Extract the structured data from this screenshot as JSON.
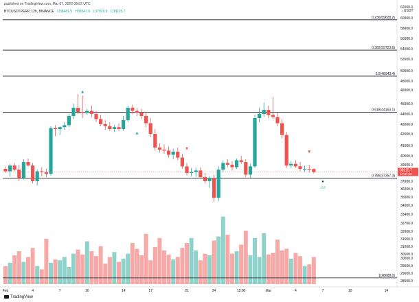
{
  "header": {
    "published": "published on TradingView.com, Mar 07, 2022 09:52 UTC",
    "symbol": "BTCUSDTPERP, 12h, BINANCE",
    "open": "O38481.9",
    "high": "H38547.6",
    "low": "L37929.9",
    "close": "C38125.7"
  },
  "currency_label": "↓ USDT",
  "footer": {
    "brand": "TradingView"
  },
  "chart_data": {
    "type": "candlestick",
    "y_axis": {
      "ylim": [
        28000,
        63000
      ],
      "tick_labels": [
        "28500.0",
        "29000.0",
        "29500.0",
        "30000.0",
        "30500.0",
        "31000.0",
        "31500.0",
        "32000.0",
        "32700.0",
        "33400.0",
        "34000.0",
        "35000.0",
        "36000.0",
        "37000.0",
        "38000.0",
        "39000.0",
        "40000.0",
        "41000.0",
        "42000.0",
        "43000.0",
        "44000.0",
        "45000.0",
        "46000.0",
        "48000.0",
        "50000.0",
        "52000.0",
        "54000.0",
        "56000.0",
        "58000.0",
        "60000.0",
        "62000.0"
      ],
      "tick_values": [
        28500,
        29000,
        29500,
        30000,
        30500,
        31000,
        31500,
        32000,
        32700,
        33400,
        34000,
        35000,
        36000,
        37000,
        38000,
        39000,
        40000,
        41000,
        42000,
        43000,
        44000,
        45000,
        46000,
        48000,
        50000,
        52000,
        54000,
        56000,
        58000,
        60000,
        62000
      ]
    },
    "x_axis": {
      "tick_labels": [
        "Feb",
        "4",
        "7",
        "10",
        "14",
        "17",
        "21",
        "24",
        "12:00",
        "Mar",
        "4",
        "7",
        "10",
        "14"
      ],
      "tick_index": [
        0,
        6,
        12,
        18,
        26,
        32,
        40,
        46,
        52,
        58,
        64,
        70,
        76,
        84
      ]
    },
    "fib_levels": [
      {
        "label": "0.236(59628.2)",
        "value": 59628.2
      },
      {
        "label": "0.382(53723.6)",
        "value": 53723.6
      },
      {
        "label": "0.5(48943.4)",
        "value": 48943.4
      },
      {
        "label": "0.618(44163.1)",
        "value": 44163.1
      },
      {
        "label": "0.786(37357.3)",
        "value": 37357.3
      },
      {
        "label": "1(28688.0)",
        "value": 28688.0
      }
    ],
    "price_label": {
      "value": 38125.7,
      "text": "38125.7",
      "sub": "17:37:05"
    },
    "markers": [
      {
        "i": 17,
        "v": 45800,
        "t": "▲"
      },
      {
        "i": 29,
        "v": 42000,
        "t": "▲"
      },
      {
        "i": 40,
        "v": 40600,
        "t": "▼"
      },
      {
        "i": 67,
        "v": 40300,
        "t": "▼"
      },
      {
        "i": 70,
        "v": 36800,
        "t": "★"
      }
    ],
    "marker_text": {
      "i": 70,
      "v": 36050,
      "t": "213"
    },
    "candles": [
      {
        "o": 38500,
        "h": 38800,
        "l": 38000,
        "c": 38200
      },
      {
        "o": 38200,
        "h": 39100,
        "l": 37600,
        "c": 38900
      },
      {
        "o": 38900,
        "h": 39200,
        "l": 38200,
        "c": 38400
      },
      {
        "o": 38400,
        "h": 39000,
        "l": 37000,
        "c": 37400
      },
      {
        "o": 37400,
        "h": 39600,
        "l": 37200,
        "c": 39300
      },
      {
        "o": 39300,
        "h": 39700,
        "l": 38800,
        "c": 38900
      },
      {
        "o": 38900,
        "h": 39200,
        "l": 36700,
        "c": 37000
      },
      {
        "o": 37000,
        "h": 38400,
        "l": 36400,
        "c": 38200
      },
      {
        "o": 38200,
        "h": 38700,
        "l": 37600,
        "c": 38100
      },
      {
        "o": 38100,
        "h": 38500,
        "l": 37500,
        "c": 37900
      },
      {
        "o": 37900,
        "h": 42800,
        "l": 37700,
        "c": 42600
      },
      {
        "o": 42600,
        "h": 42900,
        "l": 41800,
        "c": 42500
      },
      {
        "o": 42500,
        "h": 42800,
        "l": 41900,
        "c": 42700
      },
      {
        "o": 42700,
        "h": 43200,
        "l": 42400,
        "c": 42900
      },
      {
        "o": 42900,
        "h": 44000,
        "l": 42700,
        "c": 43800
      },
      {
        "o": 43800,
        "h": 45000,
        "l": 43500,
        "c": 44600
      },
      {
        "o": 44600,
        "h": 45700,
        "l": 44000,
        "c": 44200
      },
      {
        "o": 44200,
        "h": 45600,
        "l": 43600,
        "c": 44100
      },
      {
        "o": 44100,
        "h": 44500,
        "l": 43900,
        "c": 44300
      },
      {
        "o": 44300,
        "h": 44800,
        "l": 43700,
        "c": 44000
      },
      {
        "o": 44000,
        "h": 44300,
        "l": 43200,
        "c": 43500
      },
      {
        "o": 43500,
        "h": 43900,
        "l": 42800,
        "c": 43000
      },
      {
        "o": 43000,
        "h": 43400,
        "l": 42400,
        "c": 42800
      },
      {
        "o": 42800,
        "h": 43200,
        "l": 42300,
        "c": 42500
      },
      {
        "o": 42500,
        "h": 42900,
        "l": 42200,
        "c": 42700
      },
      {
        "o": 42700,
        "h": 43100,
        "l": 42300,
        "c": 42500
      },
      {
        "o": 42500,
        "h": 43800,
        "l": 42300,
        "c": 43400
      },
      {
        "o": 43400,
        "h": 44800,
        "l": 43200,
        "c": 44600
      },
      {
        "o": 44600,
        "h": 44900,
        "l": 44000,
        "c": 44300
      },
      {
        "o": 44300,
        "h": 44600,
        "l": 43800,
        "c": 44100
      },
      {
        "o": 44100,
        "h": 44500,
        "l": 43500,
        "c": 43800
      },
      {
        "o": 43800,
        "h": 44200,
        "l": 42700,
        "c": 43100
      },
      {
        "o": 43100,
        "h": 43600,
        "l": 41700,
        "c": 42000
      },
      {
        "o": 42000,
        "h": 42500,
        "l": 40500,
        "c": 40800
      },
      {
        "o": 40800,
        "h": 41200,
        "l": 40300,
        "c": 40600
      },
      {
        "o": 40600,
        "h": 41100,
        "l": 40200,
        "c": 40500
      },
      {
        "o": 40500,
        "h": 40900,
        "l": 39800,
        "c": 40100
      },
      {
        "o": 40100,
        "h": 40700,
        "l": 39600,
        "c": 40400
      },
      {
        "o": 40400,
        "h": 40800,
        "l": 39500,
        "c": 39800
      },
      {
        "o": 39800,
        "h": 40200,
        "l": 38500,
        "c": 38800
      },
      {
        "o": 38800,
        "h": 39200,
        "l": 37700,
        "c": 38000
      },
      {
        "o": 38000,
        "h": 38600,
        "l": 37600,
        "c": 38100
      },
      {
        "o": 38100,
        "h": 38600,
        "l": 37500,
        "c": 38300
      },
      {
        "o": 38300,
        "h": 38700,
        "l": 37300,
        "c": 37500
      },
      {
        "o": 37500,
        "h": 38000,
        "l": 36700,
        "c": 37000
      },
      {
        "o": 37000,
        "h": 37600,
        "l": 36100,
        "c": 37400
      },
      {
        "o": 37400,
        "h": 37800,
        "l": 34400,
        "c": 34900
      },
      {
        "o": 34900,
        "h": 38800,
        "l": 34500,
        "c": 38400
      },
      {
        "o": 38400,
        "h": 39500,
        "l": 38100,
        "c": 39200
      },
      {
        "o": 39200,
        "h": 39600,
        "l": 38700,
        "c": 39000
      },
      {
        "o": 39000,
        "h": 39400,
        "l": 38300,
        "c": 38700
      },
      {
        "o": 38700,
        "h": 39700,
        "l": 38500,
        "c": 39500
      },
      {
        "o": 39500,
        "h": 40000,
        "l": 39100,
        "c": 39300
      },
      {
        "o": 39300,
        "h": 39600,
        "l": 37500,
        "c": 37800
      },
      {
        "o": 37800,
        "h": 39100,
        "l": 37400,
        "c": 38800
      },
      {
        "o": 38800,
        "h": 43900,
        "l": 38600,
        "c": 43600
      },
      {
        "o": 43600,
        "h": 44600,
        "l": 43200,
        "c": 44000
      },
      {
        "o": 44000,
        "h": 45100,
        "l": 43700,
        "c": 44400
      },
      {
        "o": 44400,
        "h": 44800,
        "l": 43600,
        "c": 43900
      },
      {
        "o": 43900,
        "h": 45500,
        "l": 43500,
        "c": 43700
      },
      {
        "o": 43700,
        "h": 44100,
        "l": 42800,
        "c": 43100
      },
      {
        "o": 43100,
        "h": 43500,
        "l": 41600,
        "c": 41900
      },
      {
        "o": 41900,
        "h": 42200,
        "l": 38600,
        "c": 38900
      },
      {
        "o": 38900,
        "h": 39400,
        "l": 38600,
        "c": 39100
      },
      {
        "o": 39100,
        "h": 39500,
        "l": 38600,
        "c": 38800
      },
      {
        "o": 38800,
        "h": 39300,
        "l": 38200,
        "c": 38500
      },
      {
        "o": 38500,
        "h": 38900,
        "l": 38100,
        "c": 38500
      },
      {
        "o": 38500,
        "h": 39000,
        "l": 38100,
        "c": 38481.9
      },
      {
        "o": 38481.9,
        "h": 38547.6,
        "l": 37929.9,
        "c": 38125.7
      }
    ],
    "volume": {
      "max_display": 34500,
      "values": [
        0.22,
        0.26,
        0.35,
        0.4,
        0.27,
        0.33,
        0.44,
        0.22,
        0.18,
        0.55,
        0.26,
        0.3,
        0.29,
        0.33,
        0.21,
        0.37,
        0.42,
        0.36,
        0.52,
        0.4,
        0.34,
        0.46,
        0.25,
        0.33,
        0.39,
        0.27,
        0.31,
        0.37,
        0.5,
        0.43,
        0.35,
        0.61,
        0.29,
        0.45,
        0.56,
        0.41,
        0.36,
        0.3,
        0.33,
        0.44,
        0.5,
        0.56,
        0.41,
        0.29,
        0.37,
        0.35,
        0.53,
        0.58,
        0.82,
        0.6,
        0.37,
        0.4,
        0.48,
        0.65,
        0.35,
        0.56,
        0.33,
        0.62,
        0.36,
        0.38,
        0.54,
        0.41,
        0.43,
        0.31,
        0.38,
        0.34,
        0.22,
        0.24,
        0.33
      ]
    },
    "colors": {
      "up": "#26a69a",
      "down": "#ef5350",
      "vol_up": "#8ed2c9",
      "vol_down": "#f6a9a7",
      "fib": "#131722",
      "grid": "#f0f3fa"
    }
  }
}
